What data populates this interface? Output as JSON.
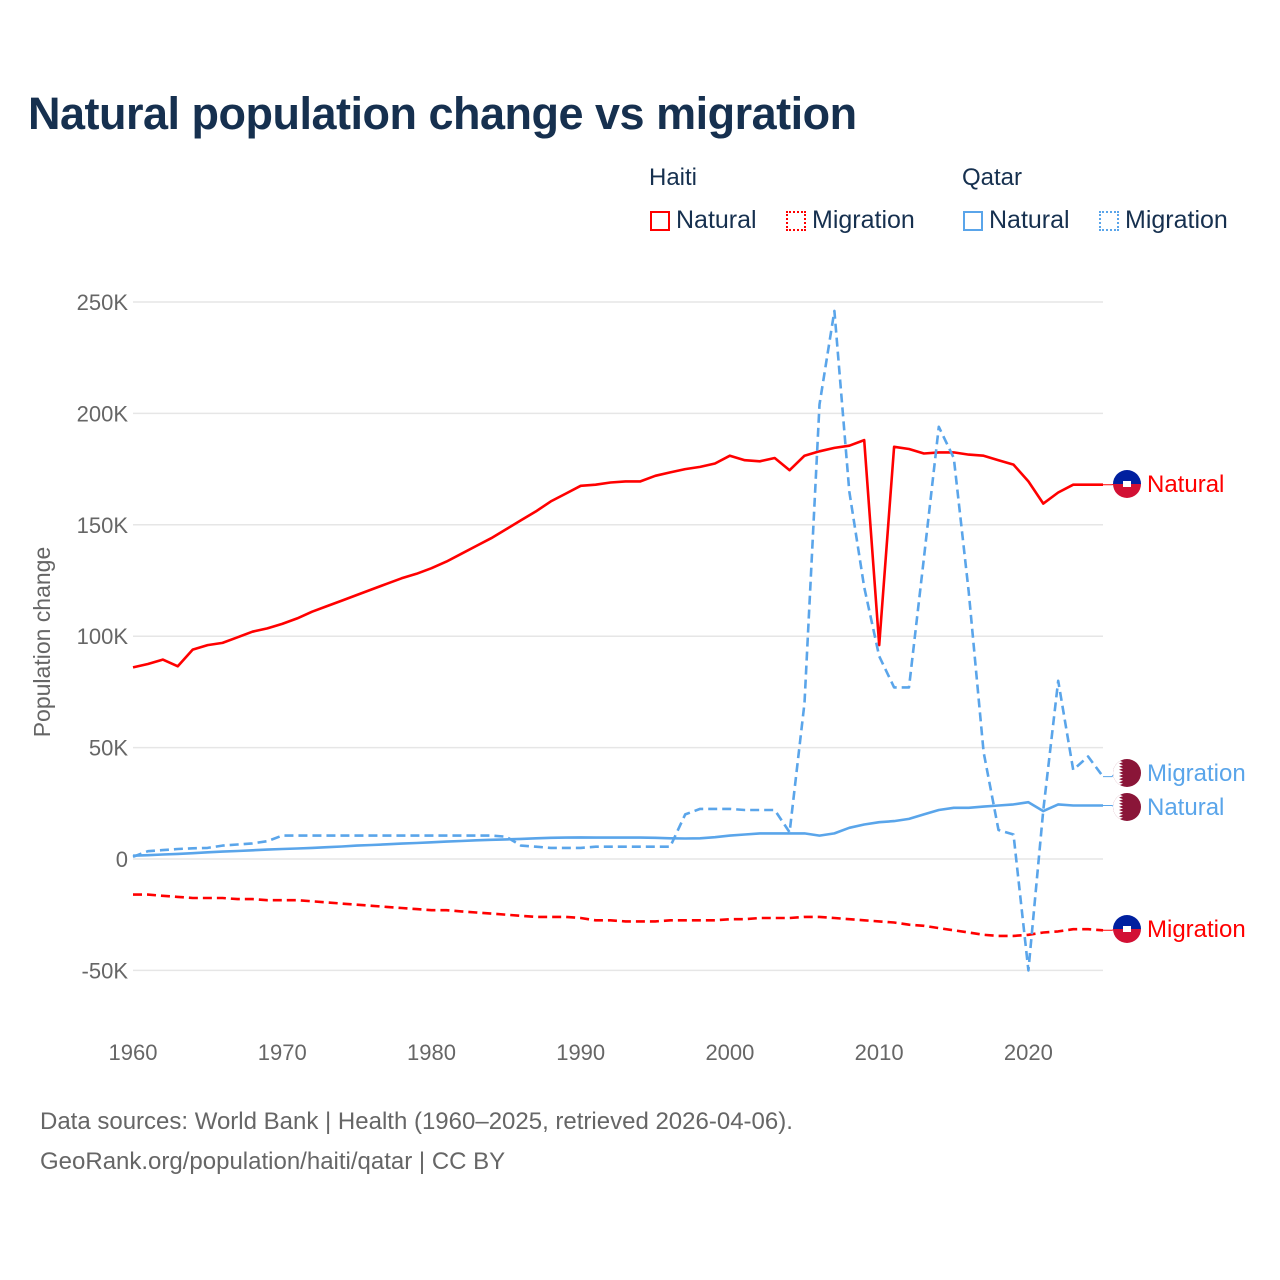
{
  "title": "Natural population change vs migration",
  "legend": {
    "groups": [
      {
        "name": "Haiti",
        "items": [
          {
            "label": "Natural",
            "color": "#ff0000",
            "style": "solid"
          },
          {
            "label": "Migration",
            "color": "#ff0000",
            "style": "dotted"
          }
        ]
      },
      {
        "name": "Qatar",
        "items": [
          {
            "label": "Natural",
            "color": "#5aa5ea",
            "style": "solid"
          },
          {
            "label": "Migration",
            "color": "#5aa5ea",
            "style": "dotted"
          }
        ]
      }
    ]
  },
  "footer": {
    "line1": "Data sources: World Bank | Health (1960–2025, retrieved 2026-04-06).",
    "line2": "GeoRank.org/population/haiti/qatar | CC BY"
  },
  "chart_data": {
    "type": "line",
    "title": "Natural population change vs migration",
    "xlabel": "",
    "ylabel": "Population change",
    "xlim": [
      1960,
      2025
    ],
    "ylim": [
      -75000,
      250000
    ],
    "x_ticks": [
      1960,
      1970,
      1980,
      1990,
      2000,
      2010,
      2020
    ],
    "x_tick_labels": [
      "1960",
      "1970",
      "1980",
      "1990",
      "2000",
      "2010",
      "2020"
    ],
    "y_ticks": [
      -50000,
      0,
      50000,
      100000,
      150000,
      200000,
      250000
    ],
    "y_tick_labels": [
      "-50K",
      "0",
      "50K",
      "100K",
      "150K",
      "200K",
      "250K"
    ],
    "grid": true,
    "legend_position": "top-right",
    "x_start": 1960,
    "series": [
      {
        "name": "Haiti Natural",
        "end_label": "Natural",
        "color": "#ff0000",
        "dash": false,
        "flag": "haiti",
        "values": [
          86000,
          87500,
          89500,
          86500,
          94000,
          96000,
          97000,
          99500,
          102000,
          103500,
          105500,
          108000,
          111000,
          113500,
          116000,
          118500,
          121000,
          123500,
          126000,
          128000,
          130500,
          133500,
          137000,
          140500,
          144000,
          148000,
          152000,
          156000,
          160500,
          164000,
          167500,
          168000,
          169000,
          169500,
          169500,
          172000,
          173500,
          175000,
          176000,
          177500,
          181000,
          179000,
          178500,
          180000,
          174500,
          181000,
          183000,
          184500,
          185500,
          188000,
          96000,
          185000,
          184000,
          182000,
          182500,
          182500,
          181500,
          181000,
          179000,
          177000,
          169500,
          159500,
          164500,
          168000,
          168000,
          168000
        ]
      },
      {
        "name": "Haiti Migration",
        "end_label": "Migration",
        "color": "#ff0000",
        "dash": true,
        "flag": "haiti",
        "values": [
          -16000,
          -16000,
          -16500,
          -17000,
          -17500,
          -17500,
          -17500,
          -18000,
          -18000,
          -18500,
          -18500,
          -18500,
          -19000,
          -19500,
          -20000,
          -20500,
          -21000,
          -21500,
          -22000,
          -22500,
          -23000,
          -23000,
          -23500,
          -24000,
          -24500,
          -25000,
          -25500,
          -26000,
          -26000,
          -26000,
          -26500,
          -27500,
          -27500,
          -28000,
          -28000,
          -28000,
          -27500,
          -27500,
          -27500,
          -27500,
          -27000,
          -27000,
          -26500,
          -26500,
          -26500,
          -26000,
          -26000,
          -26500,
          -27000,
          -27500,
          -28000,
          -28500,
          -29500,
          -30000,
          -31000,
          -32000,
          -33000,
          -34000,
          -34500,
          -34500,
          -34000,
          -33000,
          -32500,
          -31500,
          -31500,
          -32000
        ]
      },
      {
        "name": "Qatar Natural",
        "end_label": "Natural",
        "color": "#5aa5ea",
        "dash": false,
        "flag": "qatar",
        "values": [
          1500,
          1700,
          2000,
          2300,
          2600,
          3000,
          3300,
          3600,
          3900,
          4200,
          4500,
          4700,
          5000,
          5300,
          5600,
          6000,
          6300,
          6600,
          6900,
          7200,
          7500,
          7800,
          8100,
          8400,
          8600,
          8800,
          9000,
          9300,
          9500,
          9600,
          9700,
          9600,
          9600,
          9600,
          9600,
          9500,
          9300,
          9200,
          9300,
          9800,
          10500,
          11000,
          11500,
          11500,
          11500,
          11500,
          10500,
          11500,
          14000,
          15500,
          16500,
          17000,
          18000,
          20000,
          22000,
          23000,
          23000,
          23500,
          24000,
          24500,
          25500,
          21500,
          24500,
          24000,
          24000,
          24000
        ]
      },
      {
        "name": "Qatar Migration",
        "end_label": "Migration",
        "color": "#5aa5ea",
        "dash": true,
        "flag": "qatar",
        "values": [
          1000,
          3500,
          4000,
          4500,
          4800,
          5000,
          6000,
          6500,
          7000,
          8000,
          10500,
          10500,
          10500,
          10500,
          10500,
          10500,
          10500,
          10500,
          10500,
          10500,
          10500,
          10500,
          10500,
          10500,
          10500,
          10000,
          6000,
          5500,
          5000,
          5000,
          5000,
          5500,
          5500,
          5500,
          5500,
          5500,
          5500,
          20000,
          22500,
          22500,
          22500,
          22000,
          22000,
          22000,
          12000,
          70000,
          204000,
          246000,
          165000,
          122000,
          91000,
          77000,
          77000,
          135000,
          194000,
          180000,
          120000,
          48000,
          13000,
          11000,
          -50000,
          22000,
          80000,
          40000,
          46000,
          37000
        ]
      }
    ]
  }
}
